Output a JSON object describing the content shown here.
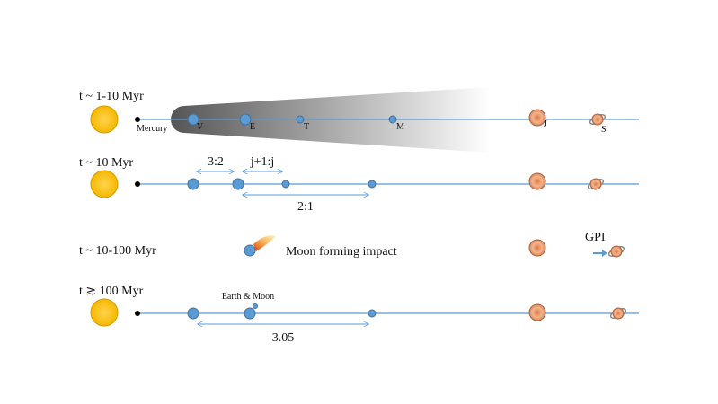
{
  "rows": [
    {
      "label": "t ~ 1-10 Myr",
      "planet_labels": [
        "Mercury",
        "V",
        "E",
        "T",
        "M",
        "J",
        "S"
      ]
    },
    {
      "label": "t ~ 10 Myr",
      "resonances": [
        "3:2",
        "j+1:j",
        "2:1"
      ]
    },
    {
      "label": "t ~ 10-100 Myr",
      "event": "Moon forming impact",
      "migration": "GPI"
    },
    {
      "label": "t ≳ 100 Myr",
      "annotation": "Earth & Moon",
      "resonance": "3.05"
    }
  ]
}
